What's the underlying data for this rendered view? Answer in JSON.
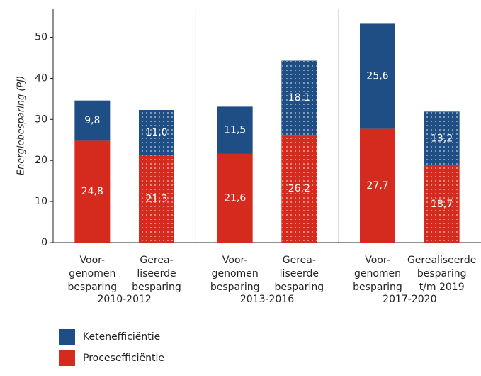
{
  "chart_data": {
    "type": "stacked_bar",
    "y_label": "Energiebesparing (PJ)",
    "groups": [
      "2010-2012",
      "2013-2016",
      "2017-2020"
    ],
    "categories": [
      [
        "Voor-",
        "genomen",
        "besparing"
      ],
      [
        "Gerea-",
        "liseerde",
        "besparing"
      ],
      [
        "Voor-",
        "genomen",
        "besparing"
      ],
      [
        "Gerea-",
        "liseerde",
        "besparing"
      ],
      [
        "Voor-",
        "genomen",
        "besparing"
      ],
      [
        "Gerealiseerde",
        "besparing",
        "t/m 2019"
      ]
    ],
    "dotted": [
      false,
      true,
      false,
      true,
      false,
      true
    ],
    "series": [
      {
        "name": "Procesefficiëntie",
        "color": "#d52b1e",
        "values": [
          24.8,
          21.3,
          21.6,
          26.2,
          27.7,
          18.7
        ],
        "value_labels": [
          "24,8",
          "21,3",
          "21,6",
          "26,2",
          "27,7",
          "18,7"
        ]
      },
      {
        "name": "Ketenefficiëntie",
        "color": "#1f4e85",
        "values": [
          9.8,
          11.0,
          11.5,
          18.1,
          25.6,
          13.2
        ],
        "value_labels": [
          "9,8",
          "11,0",
          "11,5",
          "18,1",
          "25,6",
          "13,2"
        ]
      }
    ],
    "ylim": [
      0,
      57
    ],
    "yticks": [
      0,
      10,
      20,
      30,
      40,
      50
    ]
  }
}
